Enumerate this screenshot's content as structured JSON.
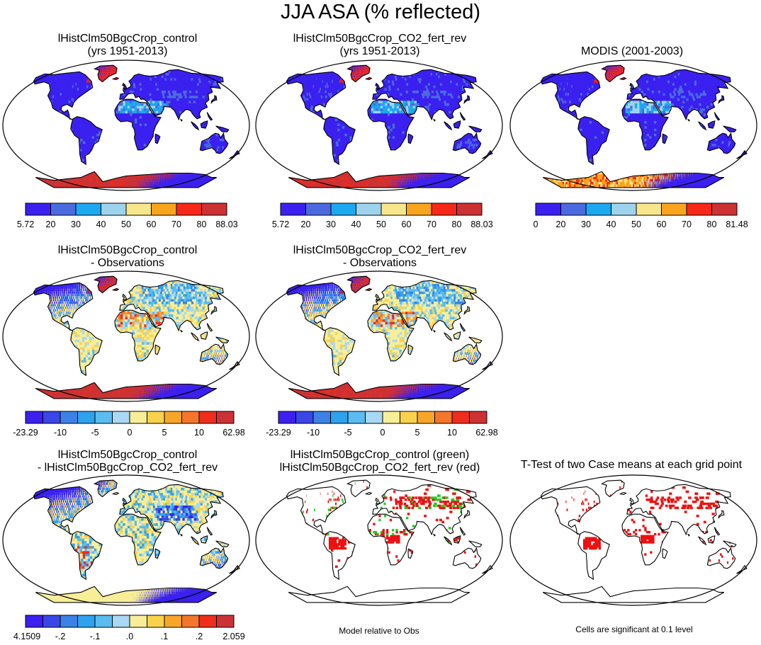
{
  "title": "JJA ASA (% reflected)",
  "colors": {
    "abs": [
      "#3b20f0",
      "#4a6be0",
      "#1ca8f0",
      "#9ed3ee",
      "#f8e68a",
      "#f8a41c",
      "#f62818",
      "#cc3234"
    ],
    "diff": [
      "#3b20f0",
      "#3a46e6",
      "#3c82e6",
      "#2ea2ec",
      "#5abcf0",
      "#a8d8f4",
      "#f8ee98",
      "#f8d24c",
      "#f8a62a",
      "#f4762a",
      "#ee2d1c",
      "#cc3234"
    ],
    "land": "#3b20f0",
    "green": "#22cc22",
    "red": "#ee1111",
    "coast": "#000000"
  },
  "panels": [
    {
      "id": "p1",
      "title": [
        "lHistClm50BgcCrop_control",
        "(yrs 1951-2013)"
      ],
      "colorbar": "abs",
      "labels": [
        "5.72",
        "20",
        "30",
        "40",
        "50",
        "60",
        "70",
        "80",
        "88.03"
      ],
      "style": "abs"
    },
    {
      "id": "p2",
      "title": [
        "lHistClm50BgcCrop_CO2_fert_rev",
        "(yrs 1951-2013)"
      ],
      "colorbar": "abs",
      "labels": [
        "5.72",
        "20",
        "30",
        "40",
        "50",
        "60",
        "70",
        "80",
        "88.03"
      ],
      "style": "abs"
    },
    {
      "id": "p3",
      "title": [
        "MODIS (2001-2003)"
      ],
      "colorbar": "abs",
      "labels": [
        "0",
        "20",
        "30",
        "40",
        "50",
        "60",
        "70",
        "80",
        "81.48"
      ],
      "style": "obs"
    },
    {
      "id": "p4",
      "title": [
        "lHistClm50BgcCrop_control",
        "- Observations"
      ],
      "colorbar": "diff",
      "labels": [
        "-23.29",
        "-10",
        "-5",
        "0",
        "5",
        "10",
        "62.98"
      ],
      "style": "bias"
    },
    {
      "id": "p5",
      "title": [
        "lHistClm50BgcCrop_CO2_fert_rev",
        "- Observations"
      ],
      "colorbar": "diff",
      "labels": [
        "-23.29",
        "-10",
        "-5",
        "0",
        "5",
        "10",
        "62.98"
      ],
      "style": "bias"
    },
    {
      "id": "p7",
      "title": [
        "lHistClm50BgcCrop_control",
        "- lHistClm50BgcCrop_CO2_fert_rev"
      ],
      "colorbar": "diff",
      "labels": [
        "-4.1509",
        "-.2",
        "-.1",
        ".0",
        ".1",
        ".2",
        "2.059"
      ],
      "style": "casediff"
    },
    {
      "id": "p8",
      "title": [
        "lHistClm50BgcCrop_control (green)",
        "lHistClm50BgcCrop_CO2_fert_rev (red)"
      ],
      "colorbar": null,
      "labels": [],
      "style": "rel"
    },
    {
      "id": "p9",
      "title": [
        "T-Test of two Case means at each grid point"
      ],
      "colorbar": null,
      "labels": [],
      "style": "ttest"
    }
  ],
  "notes": {
    "model_relative": "Model relative to Obs",
    "significance": "Cells are significant at 0.1 level"
  }
}
